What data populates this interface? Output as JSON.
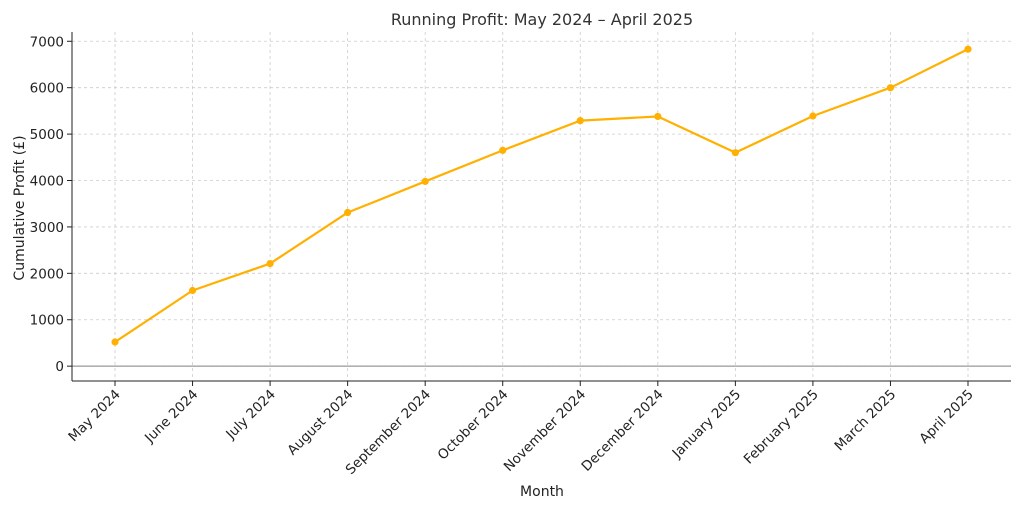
{
  "chart_data": {
    "type": "line",
    "title": "Running Profit: May 2024 – April 2025",
    "xlabel": "Month",
    "ylabel": "Cumulative Profit (£)",
    "categories": [
      "May 2024",
      "June 2024",
      "July 2024",
      "August 2024",
      "September 2024",
      "October 2024",
      "November 2024",
      "December 2024",
      "January 2025",
      "February 2025",
      "March 2025",
      "April 2025"
    ],
    "series": [
      {
        "values": [
          520,
          1630,
          2210,
          3310,
          3980,
          4650,
          5290,
          5380,
          4600,
          5390,
          6000,
          6830
        ],
        "color": "#FFB000"
      }
    ],
    "ylim": [
      -320,
      7200
    ],
    "yticks": [
      0,
      1000,
      2000,
      3000,
      4000,
      5000,
      6000,
      7000
    ],
    "grid": true,
    "zero_line": true
  }
}
